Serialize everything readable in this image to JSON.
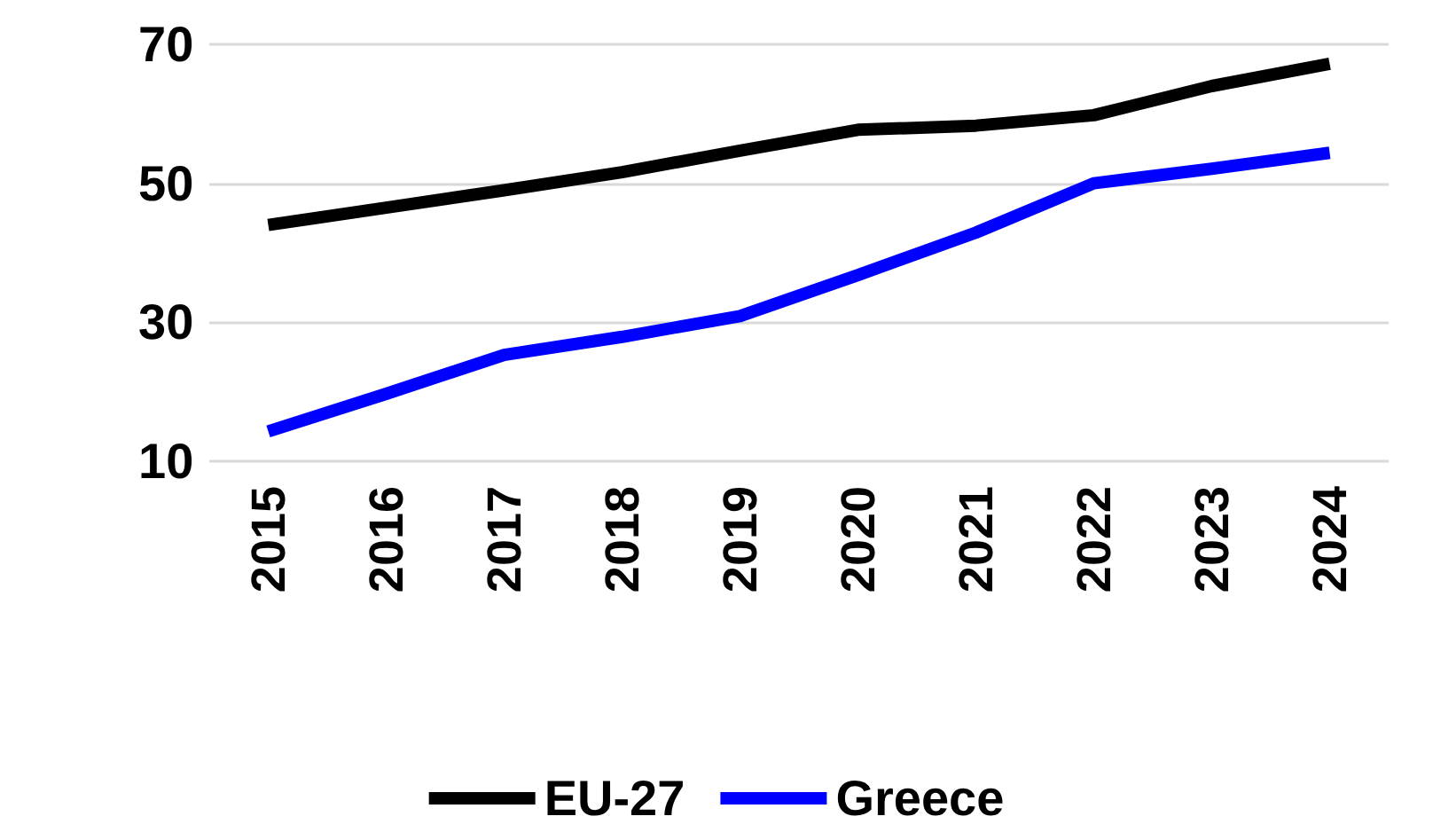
{
  "chart_data": {
    "type": "line",
    "categories": [
      "2015",
      "2016",
      "2017",
      "2018",
      "2019",
      "2020",
      "2021",
      "2022",
      "2023",
      "2024"
    ],
    "series": [
      {
        "name": "EU-27",
        "color": "#000000",
        "values": [
          44,
          46.5,
          49,
          51.6,
          54.7,
          57.7,
          58.3,
          59.8,
          64,
          67.2
        ]
      },
      {
        "name": "Greece",
        "color": "#0000ff",
        "values": [
          14.3,
          19.7,
          25.3,
          27.9,
          30.9,
          36.8,
          42.9,
          50,
          52.1,
          54.4
        ]
      }
    ],
    "ylim": [
      10,
      70
    ],
    "yticks": [
      10,
      30,
      50,
      70
    ],
    "grid": "y",
    "legend": "bottom",
    "marker": "none",
    "line_style": "solid"
  }
}
